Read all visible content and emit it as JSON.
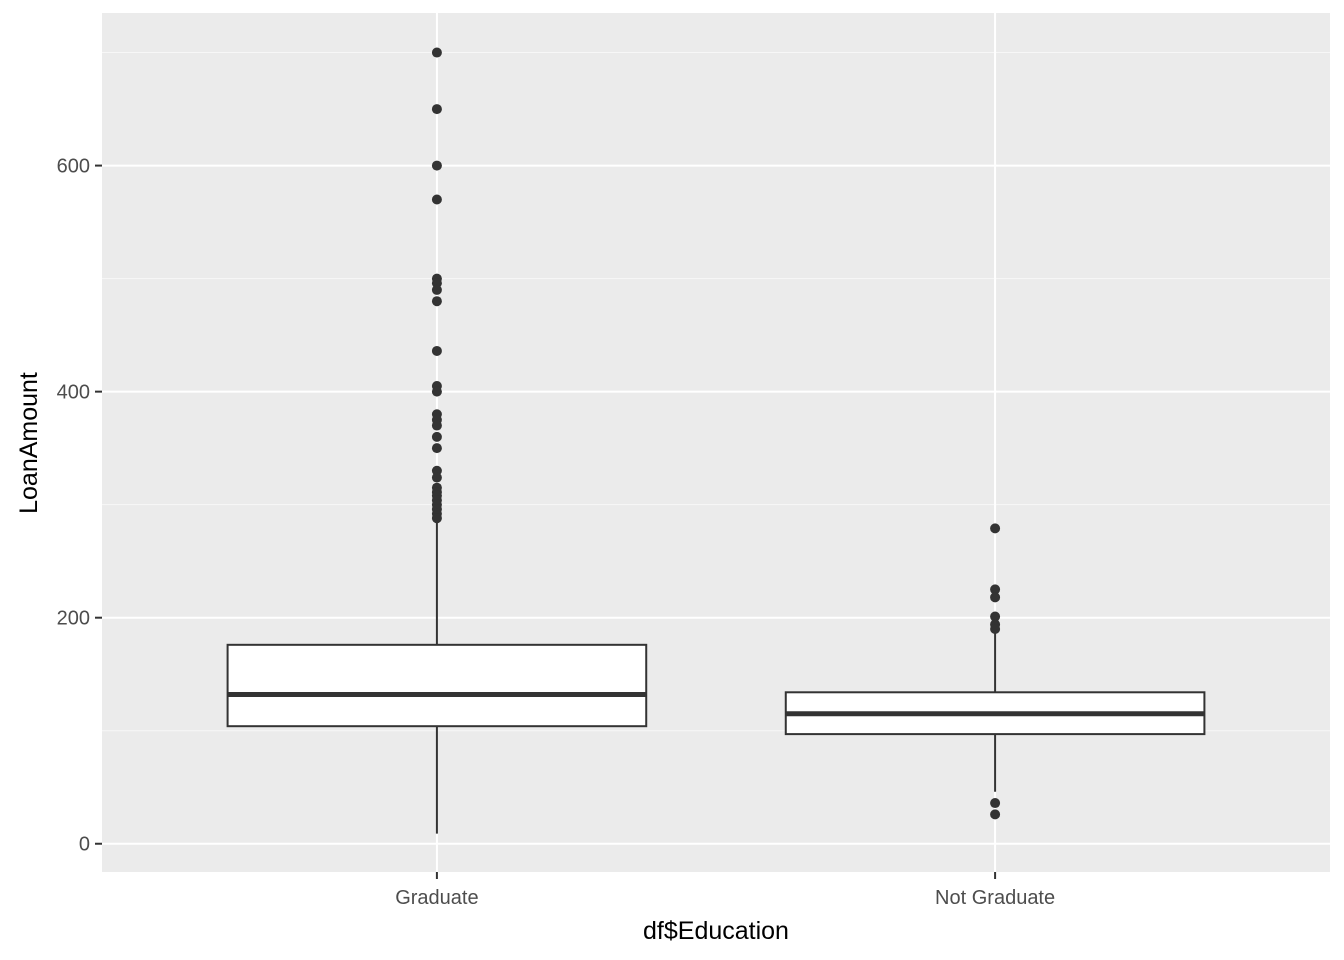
{
  "chart_data": {
    "type": "box",
    "title": "",
    "xlabel": "df$Education",
    "ylabel": "LoanAmount",
    "ylim": [
      -25,
      735
    ],
    "y_ticks": [
      0,
      200,
      400,
      600
    ],
    "y_tick_labels": [
      "0",
      "200",
      "400",
      "600"
    ],
    "y_minor_ticks": [
      100,
      300,
      500,
      700
    ],
    "grid": true,
    "legend": "none",
    "categories": [
      "Graduate",
      "Not Graduate"
    ],
    "boxes": [
      {
        "category": "Graduate",
        "whisker_low": 9,
        "q1": 104,
        "median": 132,
        "q3": 176,
        "whisker_high": 285,
        "outliers": [
          700,
          650,
          600,
          570,
          500,
          496,
          490,
          480,
          436,
          405,
          400,
          380,
          375,
          370,
          360,
          350,
          330,
          324,
          315,
          311,
          308,
          304,
          300,
          296,
          292,
          288
        ]
      },
      {
        "category": "Not Graduate",
        "whisker_low": 46,
        "q1": 97,
        "median": 115,
        "q3": 134,
        "whisker_high": 187,
        "outliers": [
          279,
          225,
          218,
          201,
          194,
          190,
          36,
          26
        ]
      }
    ],
    "colors": {
      "panel_background": "#ebebeb",
      "grid_major": "#ffffff",
      "box_fill": "#ffffff",
      "box_stroke": "#333333",
      "outlier": "#333333",
      "tick_text": "#4d4d4d",
      "axis_title": "#000000"
    }
  }
}
